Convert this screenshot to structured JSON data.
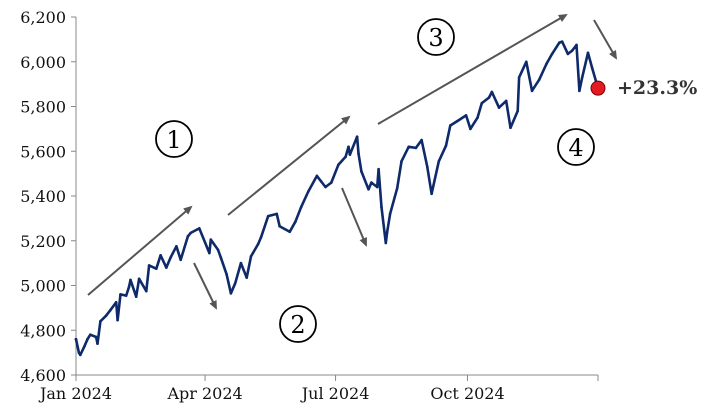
{
  "chart_data": {
    "type": "line",
    "ylim": [
      4600,
      6200
    ],
    "yticks": [
      4600,
      4800,
      5000,
      5200,
      5400,
      5600,
      5800,
      6000,
      6200
    ],
    "ytick_labels": [
      "4,600",
      "4,800",
      "5,000",
      "5,200",
      "5,400",
      "5,600",
      "5,800",
      "6,000",
      "6,200"
    ],
    "xlim": [
      "2024-01-02",
      "2024-12-31"
    ],
    "xticks": [
      {
        "date": "2024-01-02",
        "label": "Jan 2024"
      },
      {
        "date": "2024-04-01",
        "label": "Apr 2024"
      },
      {
        "date": "2024-07-01",
        "label": "Jul 2024"
      },
      {
        "date": "2024-10-01",
        "label": "Oct 2024"
      },
      {
        "date": "2024-12-31",
        "label": ""
      }
    ],
    "grid": false,
    "series": [
      {
        "color": "#0e2a6b",
        "points": [
          [
            "2024-01-02",
            4760
          ],
          [
            "2024-01-04",
            4700
          ],
          [
            "2024-01-05",
            4690
          ],
          [
            "2024-01-08",
            4730
          ],
          [
            "2024-01-10",
            4760
          ],
          [
            "2024-01-12",
            4780
          ],
          [
            "2024-01-16",
            4770
          ],
          [
            "2024-01-17",
            4740
          ],
          [
            "2024-01-19",
            4840
          ],
          [
            "2024-01-23",
            4865
          ],
          [
            "2024-01-26",
            4890
          ],
          [
            "2024-01-30",
            4925
          ],
          [
            "2024-01-31",
            4845
          ],
          [
            "2024-02-02",
            4960
          ],
          [
            "2024-02-06",
            4955
          ],
          [
            "2024-02-08",
            4995
          ],
          [
            "2024-02-09",
            5025
          ],
          [
            "2024-02-13",
            4950
          ],
          [
            "2024-02-15",
            5030
          ],
          [
            "2024-02-20",
            4975
          ],
          [
            "2024-02-22",
            5090
          ],
          [
            "2024-02-27",
            5075
          ],
          [
            "2024-03-01",
            5135
          ],
          [
            "2024-03-05",
            5080
          ],
          [
            "2024-03-08",
            5125
          ],
          [
            "2024-03-12",
            5175
          ],
          [
            "2024-03-15",
            5115
          ],
          [
            "2024-03-20",
            5220
          ],
          [
            "2024-03-22",
            5235
          ],
          [
            "2024-03-28",
            5255
          ],
          [
            "2024-04-04",
            5145
          ],
          [
            "2024-04-05",
            5205
          ],
          [
            "2024-04-10",
            5160
          ],
          [
            "2024-04-12",
            5125
          ],
          [
            "2024-04-16",
            5050
          ],
          [
            "2024-04-19",
            4965
          ],
          [
            "2024-04-22",
            5010
          ],
          [
            "2024-04-26",
            5100
          ],
          [
            "2024-04-30",
            5035
          ],
          [
            "2024-05-03",
            5130
          ],
          [
            "2024-05-08",
            5185
          ],
          [
            "2024-05-10",
            5215
          ],
          [
            "2024-05-15",
            5310
          ],
          [
            "2024-05-21",
            5320
          ],
          [
            "2024-05-23",
            5265
          ],
          [
            "2024-05-30",
            5240
          ],
          [
            "2024-06-03",
            5285
          ],
          [
            "2024-06-07",
            5350
          ],
          [
            "2024-06-12",
            5420
          ],
          [
            "2024-06-18",
            5490
          ],
          [
            "2024-06-21",
            5465
          ],
          [
            "2024-06-24",
            5440
          ],
          [
            "2024-06-28",
            5460
          ],
          [
            "2024-07-03",
            5540
          ],
          [
            "2024-07-08",
            5575
          ],
          [
            "2024-07-10",
            5620
          ],
          [
            "2024-07-11",
            5585
          ],
          [
            "2024-07-16",
            5665
          ],
          [
            "2024-07-17",
            5590
          ],
          [
            "2024-07-19",
            5510
          ],
          [
            "2024-07-24",
            5430
          ],
          [
            "2024-07-26",
            5460
          ],
          [
            "2024-07-30",
            5440
          ],
          [
            "2024-07-31",
            5520
          ],
          [
            "2024-08-02",
            5350
          ],
          [
            "2024-08-05",
            5190
          ],
          [
            "2024-08-06",
            5240
          ],
          [
            "2024-08-08",
            5320
          ],
          [
            "2024-08-13",
            5435
          ],
          [
            "2024-08-16",
            5555
          ],
          [
            "2024-08-21",
            5620
          ],
          [
            "2024-08-26",
            5615
          ],
          [
            "2024-08-30",
            5650
          ],
          [
            "2024-09-03",
            5530
          ],
          [
            "2024-09-06",
            5410
          ],
          [
            "2024-09-11",
            5555
          ],
          [
            "2024-09-16",
            5625
          ],
          [
            "2024-09-19",
            5715
          ],
          [
            "2024-09-24",
            5735
          ],
          [
            "2024-09-30",
            5760
          ],
          [
            "2024-10-03",
            5700
          ],
          [
            "2024-10-08",
            5750
          ],
          [
            "2024-10-11",
            5815
          ],
          [
            "2024-10-16",
            5840
          ],
          [
            "2024-10-18",
            5865
          ],
          [
            "2024-10-23",
            5795
          ],
          [
            "2024-10-28",
            5825
          ],
          [
            "2024-10-31",
            5705
          ],
          [
            "2024-11-05",
            5780
          ],
          [
            "2024-11-06",
            5930
          ],
          [
            "2024-11-11",
            6000
          ],
          [
            "2024-11-15",
            5870
          ],
          [
            "2024-11-20",
            5920
          ],
          [
            "2024-11-25",
            5990
          ],
          [
            "2024-11-29",
            6035
          ],
          [
            "2024-12-04",
            6085
          ],
          [
            "2024-12-06",
            6090
          ],
          [
            "2024-12-10",
            6035
          ],
          [
            "2024-12-13",
            6050
          ],
          [
            "2024-12-16",
            6075
          ],
          [
            "2024-12-18",
            5870
          ],
          [
            "2024-12-20",
            5930
          ],
          [
            "2024-12-24",
            6040
          ],
          [
            "2024-12-27",
            5970
          ],
          [
            "2024-12-31",
            5882
          ]
        ]
      }
    ],
    "end_marker": {
      "date": "2024-12-31",
      "value": 5882,
      "color": "#e31b23"
    },
    "annotations": [
      {
        "text": "+23.3%",
        "kind": "end-label"
      },
      {
        "text": "1",
        "kind": "phase"
      },
      {
        "text": "2",
        "kind": "phase"
      },
      {
        "text": "3",
        "kind": "phase"
      },
      {
        "text": "4",
        "kind": "phase"
      }
    ]
  }
}
